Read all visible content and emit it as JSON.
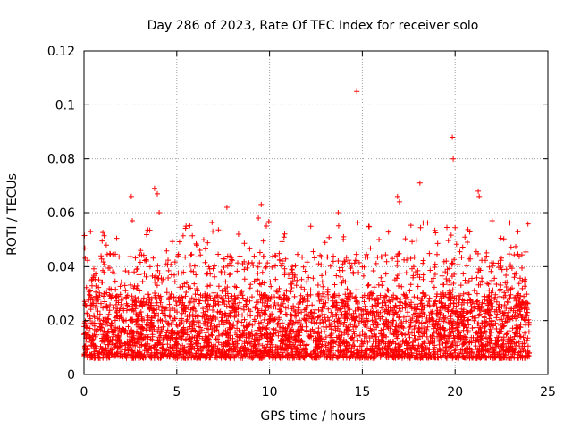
{
  "chart_data": {
    "type": "scatter",
    "title": "Day 286 of 2023, Rate Of TEC Index for receiver solo",
    "xlabel": "GPS time / hours",
    "ylabel": "ROTI / TECUs",
    "xlim": [
      0,
      25
    ],
    "ylim": [
      0,
      0.12
    ],
    "x_ticks": [
      0,
      5,
      10,
      15,
      20,
      25
    ],
    "x_tick_labels": [
      "0",
      "5",
      "10",
      "15",
      "20",
      "25"
    ],
    "y_ticks": [
      0,
      0.02,
      0.04,
      0.06,
      0.08,
      0.1,
      0.12
    ],
    "y_tick_labels": [
      "0",
      "0.02",
      "0.04",
      "0.06",
      "0.08",
      "0.1",
      "0.12"
    ],
    "grid": true,
    "marker": "+",
    "color": "#ff0000",
    "series": [
      {
        "name": "ROTI",
        "summary": "Dense cloud of ROTI samples between 0 and 24 h, mostly 0.005–0.035 TECU/s, with sporadic spikes",
        "baseline_band": [
          0.006,
          0.03
        ],
        "notable_points": [
          {
            "x": 0.35,
            "y": 0.053
          },
          {
            "x": 2.55,
            "y": 0.066
          },
          {
            "x": 2.6,
            "y": 0.057
          },
          {
            "x": 3.8,
            "y": 0.069
          },
          {
            "x": 3.95,
            "y": 0.067
          },
          {
            "x": 4.05,
            "y": 0.06
          },
          {
            "x": 5.5,
            "y": 0.055
          },
          {
            "x": 7.7,
            "y": 0.062
          },
          {
            "x": 9.55,
            "y": 0.063
          },
          {
            "x": 9.4,
            "y": 0.058
          },
          {
            "x": 13.7,
            "y": 0.06
          },
          {
            "x": 14.7,
            "y": 0.105
          },
          {
            "x": 16.9,
            "y": 0.066
          },
          {
            "x": 17.0,
            "y": 0.064
          },
          {
            "x": 18.1,
            "y": 0.071
          },
          {
            "x": 19.85,
            "y": 0.088
          },
          {
            "x": 19.9,
            "y": 0.08
          },
          {
            "x": 21.25,
            "y": 0.068
          },
          {
            "x": 21.3,
            "y": 0.066
          },
          {
            "x": 22.0,
            "y": 0.057
          }
        ]
      }
    ]
  }
}
